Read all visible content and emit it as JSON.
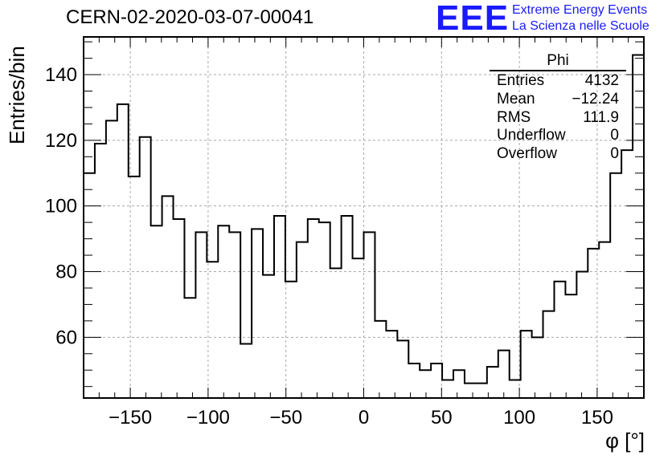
{
  "header": {
    "title": "CERN-02-2020-03-07-00041",
    "logo": "EEE",
    "logo_line1": "Extreme Energy Events",
    "logo_line2": "La Scienza nelle Scuole"
  },
  "stats": {
    "name": "Phi",
    "rows": [
      {
        "label": "Entries",
        "value": "4132"
      },
      {
        "label": "Mean",
        "value": "−12.24"
      },
      {
        "label": "RMS",
        "value": "111.9"
      },
      {
        "label": "Underflow",
        "value": "0"
      },
      {
        "label": "Overflow",
        "value": "0"
      }
    ]
  },
  "chart_data": {
    "type": "histogram",
    "xlabel": "φ [°]",
    "ylabel": "Entries/bin",
    "xlim": [
      -180,
      180
    ],
    "ylim": [
      41.5,
      151.5
    ],
    "bin_width": 7.2,
    "values": [
      110,
      119,
      126,
      131,
      109,
      121,
      94,
      103,
      96,
      72,
      92,
      83,
      94,
      92,
      58,
      93,
      79,
      97,
      77,
      89,
      96,
      95,
      81,
      97,
      84,
      92,
      65,
      62,
      59,
      52,
      50,
      52,
      47,
      50,
      46,
      46,
      51,
      56,
      47,
      62,
      60,
      68,
      77,
      73,
      80,
      87,
      89,
      110,
      117,
      146
    ],
    "xticks": [
      -150,
      -100,
      -50,
      0,
      50,
      100,
      150
    ],
    "xtick_labels": [
      "−150",
      "−100",
      "−50",
      "0",
      "50",
      "100",
      "150"
    ],
    "yticks": [
      60,
      80,
      100,
      120,
      140
    ],
    "ytick_labels": [
      "60",
      "80",
      "100",
      "120",
      "140"
    ],
    "grid": true
  }
}
